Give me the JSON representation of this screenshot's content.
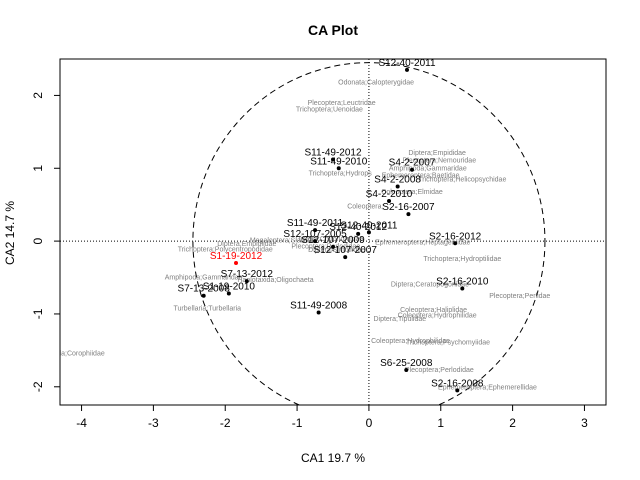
{
  "chart_data": {
    "type": "scatter",
    "title": "CA Plot",
    "xlabel": "CA1  19.7 %",
    "ylabel": "CA2  14.7 %",
    "xlim": [
      -4.3,
      3.3
    ],
    "ylim": [
      -2.25,
      2.5
    ],
    "xticks": [
      -4,
      -3,
      -2,
      -1,
      0,
      1,
      2,
      3
    ],
    "yticks": [
      -2,
      -1,
      0,
      1,
      2
    ],
    "reference_lines": {
      "x": 0,
      "y": 0
    },
    "circle": {
      "center": [
        0,
        0
      ],
      "radius": 2.45
    },
    "colors": {
      "site": "#000000",
      "highlight": "#ff0000",
      "taxon": "#808080"
    },
    "sites": [
      {
        "label": "S12-40-2011",
        "x": 0.53,
        "y": 2.35,
        "color": "#000000"
      },
      {
        "label": "S11-49-2012",
        "x": -0.5,
        "y": 1.12,
        "color": "#000000"
      },
      {
        "label": "S11-49-2010",
        "x": -0.42,
        "y": 1.0,
        "color": "#000000"
      },
      {
        "label": "S4-2-2007",
        "x": 0.6,
        "y": 0.98,
        "color": "#000000"
      },
      {
        "label": "S4-2-2008",
        "x": 0.4,
        "y": 0.75,
        "color": "#000000"
      },
      {
        "label": "S4-2-2010",
        "x": 0.28,
        "y": 0.55,
        "color": "#000000"
      },
      {
        "label": "S2-16-2007",
        "x": 0.55,
        "y": 0.37,
        "color": "#000000"
      },
      {
        "label": "S11-49-2011",
        "x": -0.75,
        "y": 0.15,
        "color": "#000000"
      },
      {
        "label": "S12-40-2012",
        "x": -0.15,
        "y": 0.1,
        "color": "#000000"
      },
      {
        "label": "S12-40-2011",
        "x": 0.0,
        "y": 0.12,
        "color": "#000000"
      },
      {
        "label": "S12-107-2005",
        "x": -0.75,
        "y": 0.0,
        "color": "#000000"
      },
      {
        "label": "S12-107-2009",
        "x": -0.5,
        "y": -0.08,
        "color": "#000000"
      },
      {
        "label": "S12-107-2007",
        "x": -0.33,
        "y": -0.22,
        "color": "#000000"
      },
      {
        "label": "S2-16-2012",
        "x": 1.2,
        "y": -0.03,
        "color": "#000000"
      },
      {
        "label": "S1-19-2012",
        "x": -1.85,
        "y": -0.3,
        "color": "#ff0000"
      },
      {
        "label": "S7-13-2012",
        "x": -1.7,
        "y": -0.55,
        "color": "#000000"
      },
      {
        "label": "S7-13-2008",
        "x": -2.3,
        "y": -0.75,
        "color": "#000000"
      },
      {
        "label": "S1-19-2010",
        "x": -1.95,
        "y": -0.72,
        "color": "#000000"
      },
      {
        "label": "S2-16-2010",
        "x": 1.3,
        "y": -0.65,
        "color": "#000000"
      },
      {
        "label": "S11-49-2008",
        "x": -0.7,
        "y": -0.98,
        "color": "#000000"
      },
      {
        "label": "S6-25-2008",
        "x": 0.52,
        "y": -1.77,
        "color": "#000000"
      },
      {
        "label": "S2-16-2008",
        "x": 1.23,
        "y": -2.05,
        "color": "#000000"
      }
    ],
    "taxa": [
      {
        "label": "Odonata;Calopterygidae",
        "x": 0.1,
        "y": 2.15
      },
      {
        "label": "Plecoptera;Leuctridae",
        "x": -0.38,
        "y": 1.87
      },
      {
        "label": "Trichoptera;Uenoidae",
        "x": -0.55,
        "y": 1.78
      },
      {
        "label": "Diptera;Empididae",
        "x": 0.95,
        "y": 1.18
      },
      {
        "label": "Plecoptera;Nemouridae",
        "x": 0.98,
        "y": 1.08
      },
      {
        "label": "Trichoptera;Hydrops",
        "x": -0.4,
        "y": 0.9
      },
      {
        "label": "Amphipoda;Gammaridae",
        "x": 0.82,
        "y": 0.97
      },
      {
        "label": "Ephemeroptera;Baetidae",
        "x": 0.72,
        "y": 0.87
      },
      {
        "label": "Trichoptera;Helicopsychidae",
        "x": 1.3,
        "y": 0.82
      },
      {
        "label": "Coleoptera;Elmidae",
        "x": 0.6,
        "y": 0.65
      },
      {
        "label": "Coleoptera;",
        "x": -0.05,
        "y": 0.45
      },
      {
        "label": "Ephemeroptera;Heptageniidae",
        "x": 0.75,
        "y": -0.05
      },
      {
        "label": "Megaloptera;Sialidae",
        "x": -1.2,
        "y": -0.02
      },
      {
        "label": "Diptera;Chironomidae",
        "x": -0.55,
        "y": 0.0
      },
      {
        "label": "Plecoptera;Perlodidae",
        "x": -0.6,
        "y": -0.1
      },
      {
        "label": "Diptera;Simuliidae",
        "x": -0.45,
        "y": -0.15
      },
      {
        "label": "Trichoptera;Polycentropodidae",
        "x": -2.0,
        "y": -0.14
      },
      {
        "label": "Diptera;Empidiidae",
        "x": -1.7,
        "y": -0.07
      },
      {
        "label": "Trichoptera;Hydroptilidae",
        "x": 1.3,
        "y": -0.27
      },
      {
        "label": "Amphipoda;Gammaridae",
        "x": -2.3,
        "y": -0.53
      },
      {
        "label": "Haplotaxida;Oligochaeta",
        "x": -1.3,
        "y": -0.56
      },
      {
        "label": "Diptera;Ceratopogonidae",
        "x": 0.85,
        "y": -0.62
      },
      {
        "label": "Plecoptera;Perlidae",
        "x": 2.1,
        "y": -0.78
      },
      {
        "label": "Turbellaria;Turbellaria",
        "x": -2.25,
        "y": -0.95
      },
      {
        "label": "Coleoptera;Haliplidae",
        "x": 0.9,
        "y": -0.97
      },
      {
        "label": "Diptera;Tipulidae",
        "x": 0.43,
        "y": -1.1
      },
      {
        "label": "Coleoptera;Hydrophilidae",
        "x": 0.95,
        "y": -1.05
      },
      {
        "label": "Coleoptera;Hydrophilidae",
        "x": 0.58,
        "y": -1.4
      },
      {
        "label": "Trichoptera;Psychomyiidae",
        "x": 1.1,
        "y": -1.42
      },
      {
        "label": "Plecoptera;Perlodidae",
        "x": 0.98,
        "y": -1.8
      },
      {
        "label": "Ephemeroptera;Ephemerellidae",
        "x": 1.65,
        "y": -2.04
      },
      {
        "label": "Amphipoda;Corophiidae",
        "x": -4.2,
        "y": -1.57
      }
    ]
  }
}
